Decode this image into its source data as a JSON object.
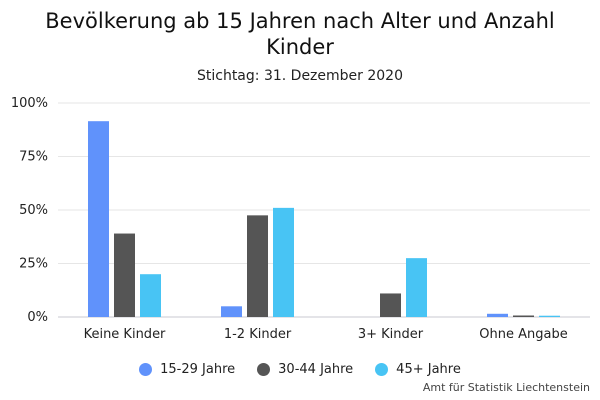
{
  "chart_data": {
    "type": "bar",
    "title": "Bevölkerung ab 15 Jahren nach Alter und Anzahl Kinder",
    "subtitle": "Stichtag: 31. Dezember 2020",
    "categories": [
      "Keine Kinder",
      "1-2 Kinder",
      "3+ Kinder",
      "Ohne Angabe"
    ],
    "series": [
      {
        "name": "15-29 Jahre",
        "color": "#6092fb",
        "values": [
          91.5,
          5.0,
          0.0,
          1.5
        ]
      },
      {
        "name": "30-44 Jahre",
        "color": "#555555",
        "values": [
          39.0,
          47.5,
          11.0,
          0.7
        ]
      },
      {
        "name": "45+ Jahre",
        "color": "#48c4f4",
        "values": [
          20.0,
          51.0,
          27.5,
          0.6
        ]
      }
    ],
    "ylim": [
      0,
      100
    ],
    "yticks": [
      "0%",
      "25%",
      "50%",
      "75%",
      "100%"
    ],
    "grid": true,
    "legend": "bottom"
  },
  "source": "Amt für Statistik Liechtenstein"
}
